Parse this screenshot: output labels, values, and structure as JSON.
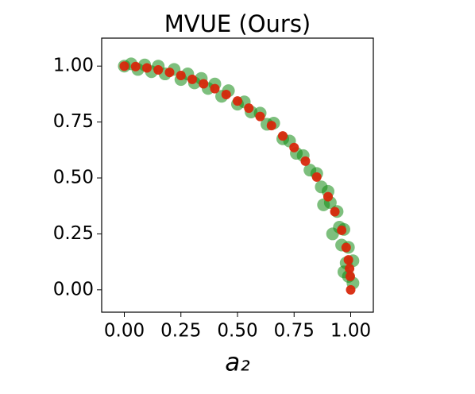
{
  "chart_data": {
    "type": "scatter",
    "title": "MVUE (Ours)",
    "xlabel": "a₂",
    "xlim": [
      -0.1,
      1.1
    ],
    "ylim": [
      -0.1,
      1.125
    ],
    "xticks": [
      {
        "value": 0,
        "label": "0.00"
      },
      {
        "value": 0.25,
        "label": "0.25"
      },
      {
        "value": 0.5,
        "label": "0.50"
      },
      {
        "value": 0.75,
        "label": "0.75"
      },
      {
        "value": 1,
        "label": "1.00"
      }
    ],
    "yticks": [
      {
        "value": 0,
        "label": "0.00"
      },
      {
        "value": 0.25,
        "label": "0.25"
      },
      {
        "value": 0.5,
        "label": "0.50"
      },
      {
        "value": 0.75,
        "label": "0.75"
      },
      {
        "value": 1,
        "label": "1.00"
      }
    ],
    "grid": false,
    "series": [
      {
        "color": "#138a13",
        "x": [
          0.0,
          0.03,
          0.06,
          0.09,
          0.12,
          0.15,
          0.18,
          0.22,
          0.25,
          0.28,
          0.31,
          0.34,
          0.37,
          0.4,
          0.43,
          0.46,
          0.5,
          0.53,
          0.56,
          0.6,
          0.63,
          0.66,
          0.7,
          0.73,
          0.76,
          0.79,
          0.82,
          0.85,
          0.87,
          0.9,
          0.91,
          0.94,
          0.95,
          0.97,
          0.96,
          0.99,
          0.98,
          1.01,
          0.99,
          1.01,
          0.92,
          0.88,
          0.97
        ],
        "y": [
          1.0,
          1.01,
          0.985,
          1.005,
          0.975,
          1.0,
          0.965,
          0.985,
          0.94,
          0.965,
          0.925,
          0.945,
          0.9,
          0.92,
          0.865,
          0.89,
          0.83,
          0.84,
          0.795,
          0.79,
          0.74,
          0.745,
          0.675,
          0.665,
          0.61,
          0.6,
          0.535,
          0.52,
          0.46,
          0.44,
          0.39,
          0.35,
          0.28,
          0.27,
          0.2,
          0.19,
          0.12,
          0.13,
          0.06,
          0.03,
          0.25,
          0.38,
          0.08
        ]
      },
      {
        "color": "#d8280c",
        "x": [
          0,
          0.05,
          0.1,
          0.15,
          0.2,
          0.25,
          0.3,
          0.35,
          0.4,
          0.45,
          0.5,
          0.55,
          0.6,
          0.65,
          0.7,
          0.75,
          0.8,
          0.85,
          0.9,
          0.93,
          0.96,
          0.98,
          0.99,
          0.995,
          0.998,
          1.0
        ],
        "y": [
          1,
          0.998,
          0.992,
          0.983,
          0.972,
          0.958,
          0.941,
          0.921,
          0.899,
          0.873,
          0.844,
          0.812,
          0.775,
          0.734,
          0.688,
          0.636,
          0.575,
          0.504,
          0.416,
          0.349,
          0.266,
          0.189,
          0.134,
          0.095,
          0.06,
          0
        ]
      }
    ]
  }
}
